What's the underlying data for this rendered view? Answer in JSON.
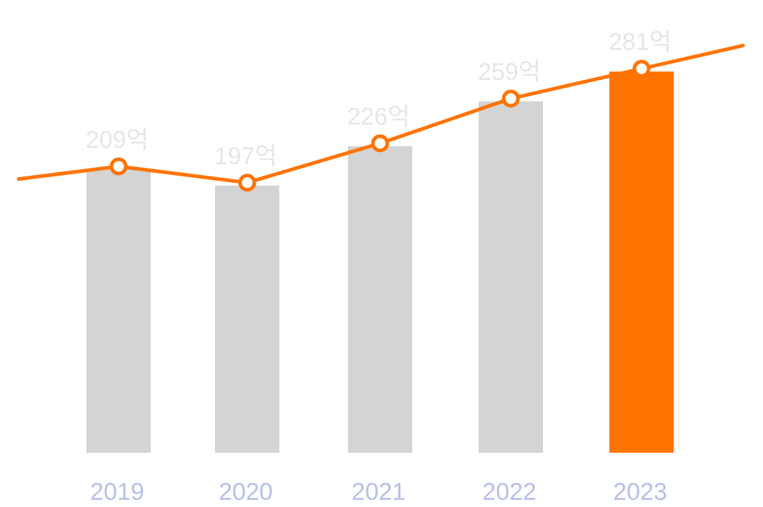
{
  "chart_data": {
    "type": "bar",
    "categories": [
      "2019",
      "2020",
      "2021",
      "2022",
      "2023"
    ],
    "values": [
      209,
      197,
      226,
      259,
      281
    ],
    "data_labels": [
      "209억",
      "197억",
      "226억",
      "259억",
      "281억"
    ],
    "title": "",
    "xlabel": "",
    "ylabel": "",
    "ylim": [
      0,
      290
    ],
    "grid": false,
    "legend": "none",
    "overlay_line": true,
    "highlight_index": 4,
    "colors": {
      "bar": "#d4d4d4",
      "bar_highlight": "#ff7300",
      "line": "#ff7300",
      "marker_fill": "#ffffff",
      "value_label": "#e6e6e6",
      "year_label": "#b8bfe8"
    }
  }
}
